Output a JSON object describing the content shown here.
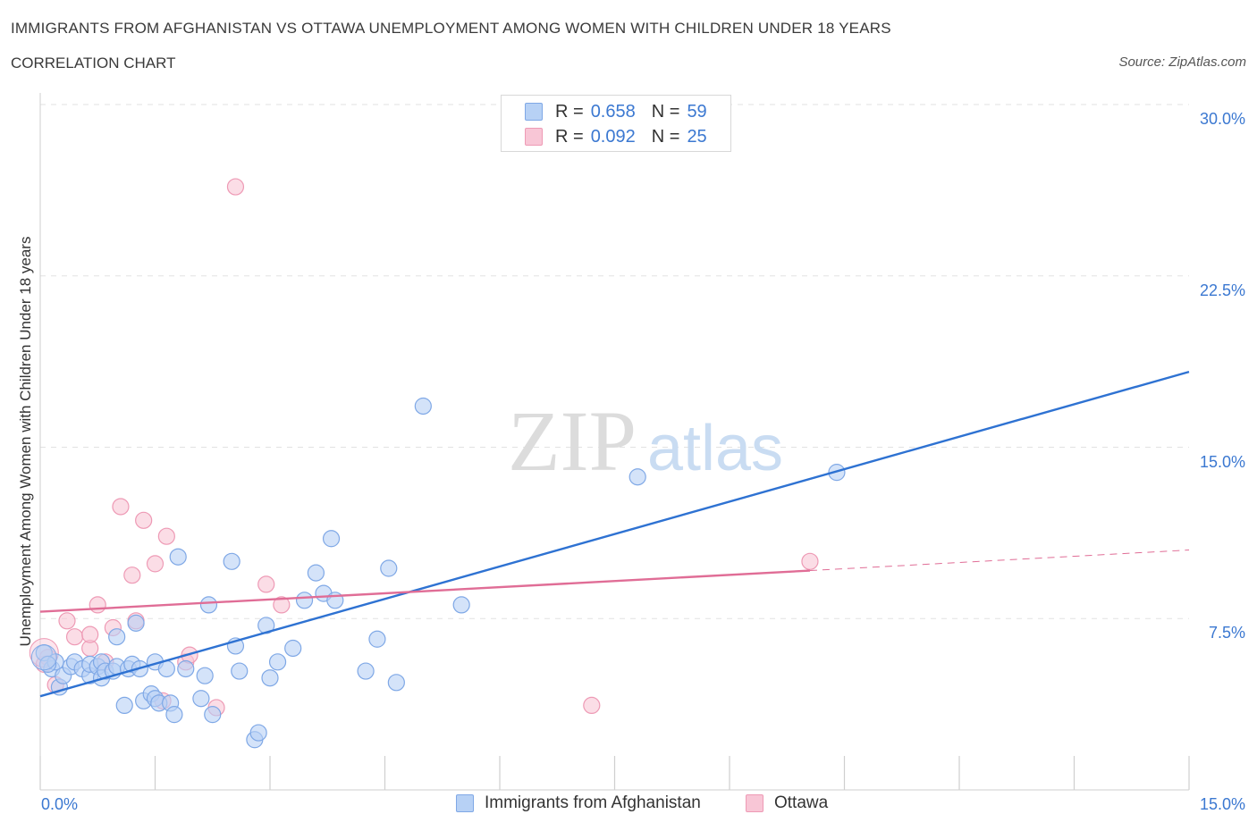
{
  "title": "IMMIGRANTS FROM AFGHANISTAN VS OTTAWA UNEMPLOYMENT AMONG WOMEN WITH CHILDREN UNDER 18 YEARS",
  "subtitle": "CORRELATION CHART",
  "source": "Source: ZipAtlas.com",
  "watermark": {
    "zip": "ZIP",
    "atlas": "atlas"
  },
  "legend": {
    "rows": [
      {
        "r_label": "R =",
        "r_value": "0.658",
        "n_label": "N =",
        "n_value": "59"
      },
      {
        "r_label": "R =",
        "r_value": "0.092",
        "n_label": "N =",
        "n_value": "25"
      }
    ]
  },
  "colors": {
    "blue_fill": "#b7d1f5",
    "blue_stroke": "#7fa8e6",
    "blue_line": "#2e72d2",
    "pink_fill": "#f8c6d6",
    "pink_stroke": "#ee9ab5",
    "pink_line": "#e06d96",
    "accent_text": "#3b78d1",
    "grid": "#e2e2e2"
  },
  "chart_data": {
    "type": "scatter",
    "title": "IMMIGRANTS FROM AFGHANISTAN VS OTTAWA UNEMPLOYMENT AMONG WOMEN WITH CHILDREN UNDER 18 YEARS",
    "xlabel": "",
    "ylabel": "Unemployment Among Women with Children Under 18 years",
    "xlim": [
      0,
      15
    ],
    "ylim": [
      0,
      30
    ],
    "x_tick_labels": [
      "0.0%",
      "15.0%"
    ],
    "y_tick_labels": [
      "7.5%",
      "15.0%",
      "22.5%",
      "30.0%"
    ],
    "y_ticks": [
      7.5,
      15,
      22.5,
      30
    ],
    "grid": true,
    "legend_position": "top-center",
    "series": [
      {
        "name": "Immigrants from Afghanistan",
        "color": "#7fa8e6",
        "points": [
          [
            0.05,
            6.0
          ],
          [
            0.15,
            5.3
          ],
          [
            0.2,
            5.6
          ],
          [
            0.25,
            4.5
          ],
          [
            0.3,
            5.0
          ],
          [
            0.4,
            5.4
          ],
          [
            0.45,
            5.6
          ],
          [
            0.55,
            5.3
          ],
          [
            0.65,
            5.0
          ],
          [
            0.65,
            5.5
          ],
          [
            0.75,
            5.4
          ],
          [
            0.8,
            5.6
          ],
          [
            0.8,
            4.9
          ],
          [
            0.85,
            5.2
          ],
          [
            0.95,
            5.2
          ],
          [
            1.0,
            5.4
          ],
          [
            1.0,
            6.7
          ],
          [
            1.1,
            3.7
          ],
          [
            1.15,
            5.3
          ],
          [
            1.2,
            5.5
          ],
          [
            1.25,
            7.3
          ],
          [
            1.3,
            5.3
          ],
          [
            1.35,
            3.9
          ],
          [
            1.45,
            4.2
          ],
          [
            1.5,
            4.0
          ],
          [
            1.5,
            5.6
          ],
          [
            1.55,
            3.8
          ],
          [
            1.65,
            5.3
          ],
          [
            1.7,
            3.8
          ],
          [
            1.75,
            3.3
          ],
          [
            1.8,
            10.2
          ],
          [
            1.9,
            5.3
          ],
          [
            2.1,
            4.0
          ],
          [
            2.15,
            5.0
          ],
          [
            2.2,
            8.1
          ],
          [
            2.25,
            3.3
          ],
          [
            2.5,
            10.0
          ],
          [
            2.55,
            6.3
          ],
          [
            2.6,
            5.2
          ],
          [
            2.8,
            2.2
          ],
          [
            2.85,
            2.5
          ],
          [
            2.95,
            7.2
          ],
          [
            3.0,
            4.9
          ],
          [
            3.1,
            5.6
          ],
          [
            3.3,
            6.2
          ],
          [
            3.45,
            8.3
          ],
          [
            3.6,
            9.5
          ],
          [
            3.7,
            8.6
          ],
          [
            3.8,
            11.0
          ],
          [
            3.85,
            8.3
          ],
          [
            4.25,
            5.2
          ],
          [
            4.4,
            6.6
          ],
          [
            4.55,
            9.7
          ],
          [
            4.65,
            4.7
          ],
          [
            5.0,
            16.8
          ],
          [
            5.5,
            8.1
          ],
          [
            7.8,
            13.7
          ],
          [
            10.4,
            13.9
          ],
          [
            0.1,
            5.5
          ]
        ]
      },
      {
        "name": "Ottawa",
        "color": "#ee9ab5",
        "points": [
          [
            0.05,
            5.5
          ],
          [
            0.2,
            4.6
          ],
          [
            0.35,
            7.4
          ],
          [
            0.45,
            6.7
          ],
          [
            0.65,
            6.2
          ],
          [
            0.65,
            6.8
          ],
          [
            0.75,
            8.1
          ],
          [
            0.85,
            5.6
          ],
          [
            0.95,
            7.1
          ],
          [
            1.05,
            12.4
          ],
          [
            1.2,
            9.4
          ],
          [
            1.25,
            7.4
          ],
          [
            1.35,
            11.8
          ],
          [
            1.5,
            9.9
          ],
          [
            1.6,
            3.9
          ],
          [
            1.65,
            11.1
          ],
          [
            1.9,
            5.6
          ],
          [
            1.95,
            5.9
          ],
          [
            2.3,
            3.6
          ],
          [
            2.55,
            26.4
          ],
          [
            2.95,
            9.0
          ],
          [
            3.15,
            8.1
          ],
          [
            7.2,
            3.7
          ],
          [
            10.05,
            10.0
          ],
          [
            0.1,
            5.8
          ]
        ]
      }
    ],
    "trendlines": [
      {
        "series": "Immigrants from Afghanistan",
        "x": [
          0,
          15
        ],
        "y": [
          4.1,
          18.3
        ],
        "style": "solid"
      },
      {
        "series": "Ottawa",
        "x": [
          0,
          10.05
        ],
        "y": [
          7.8,
          9.6
        ],
        "style": "solid"
      },
      {
        "series": "Ottawa",
        "x": [
          10.05,
          15
        ],
        "y": [
          9.6,
          10.5
        ],
        "style": "dashed"
      }
    ]
  }
}
